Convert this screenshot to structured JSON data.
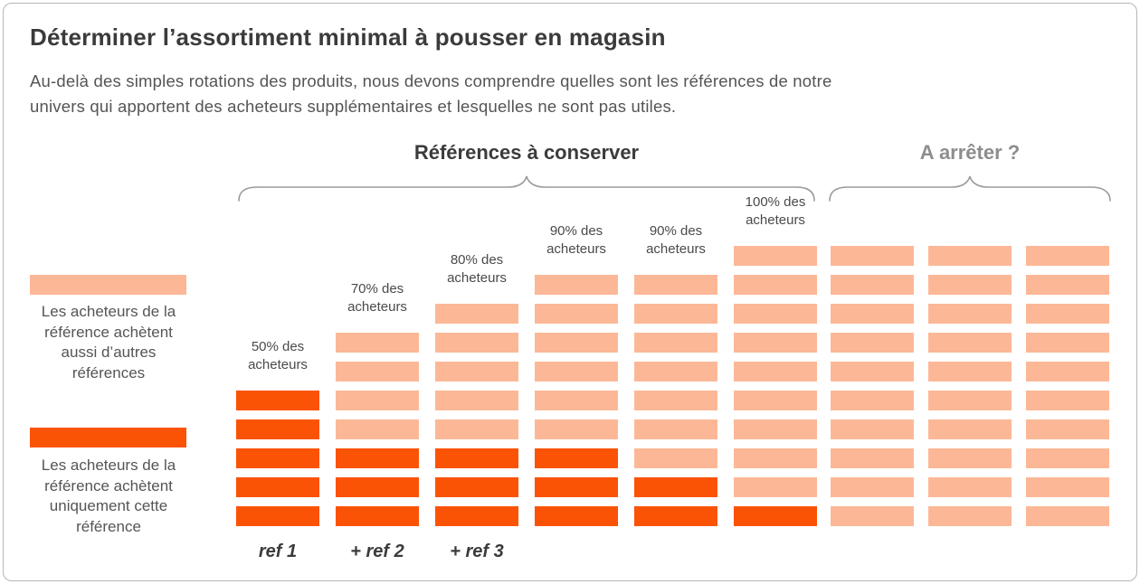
{
  "header": {
    "title": "Déterminer l’assortiment minimal à pousser en magasin",
    "subtitle": "Au-delà des simples rotations des produits, nous devons comprendre quelles sont les références de notre\nunivers qui apportent des acheteurs supplémentaires et lesquelles ne sont pas utiles."
  },
  "sections": {
    "keep_label": "Références à conserver",
    "stop_label": "A arrêter ?"
  },
  "legend": {
    "light_text": "Les acheteurs de la\nréférence achètent\naussi d’autres\nréférences",
    "dark_text": "Les acheteurs de la\nréférence achètent\nuniquement cette\nréférence"
  },
  "colors": {
    "light_orange": "#FCB896",
    "dark_orange": "#FB5306",
    "heading": "#3b3b3b",
    "muted_heading": "#8d8d8d",
    "brace": "#9b9b9b"
  },
  "chart_data": {
    "type": "bar",
    "title": "Déterminer l’assortiment minimal à pousser en magasin",
    "unit_semantics": {
      "light": "Les acheteurs de la référence achètent aussi d’autres références",
      "dark": "Les acheteurs de la référence achètent uniquement cette référence"
    },
    "rows_max": 10,
    "legend_position": "left",
    "columns": [
      {
        "section": "keep",
        "top_label": "50% des\nacheteurs",
        "axis_label": "ref 1",
        "light_units": 0,
        "dark_units": 5,
        "total_units": 5
      },
      {
        "section": "keep",
        "top_label": "70% des\nacheteurs",
        "axis_label": "+ ref 2",
        "light_units": 4,
        "dark_units": 3,
        "total_units": 7
      },
      {
        "section": "keep",
        "top_label": "80% des\nacheteurs",
        "axis_label": "+ ref 3",
        "light_units": 5,
        "dark_units": 3,
        "total_units": 8
      },
      {
        "section": "keep",
        "top_label": "90% des\nacheteurs",
        "axis_label": "",
        "light_units": 6,
        "dark_units": 3,
        "total_units": 9
      },
      {
        "section": "keep",
        "top_label": "90% des\nacheteurs",
        "axis_label": "",
        "light_units": 7,
        "dark_units": 2,
        "total_units": 9
      },
      {
        "section": "keep",
        "top_label": "100% des\nacheteurs",
        "axis_label": "",
        "light_units": 9,
        "dark_units": 1,
        "total_units": 10
      },
      {
        "section": "stop",
        "top_label": "",
        "axis_label": "",
        "light_units": 10,
        "dark_units": 0,
        "total_units": 10
      },
      {
        "section": "stop",
        "top_label": "",
        "axis_label": "",
        "light_units": 10,
        "dark_units": 0,
        "total_units": 10
      },
      {
        "section": "stop",
        "top_label": "",
        "axis_label": "",
        "light_units": 10,
        "dark_units": 0,
        "total_units": 10
      }
    ]
  }
}
